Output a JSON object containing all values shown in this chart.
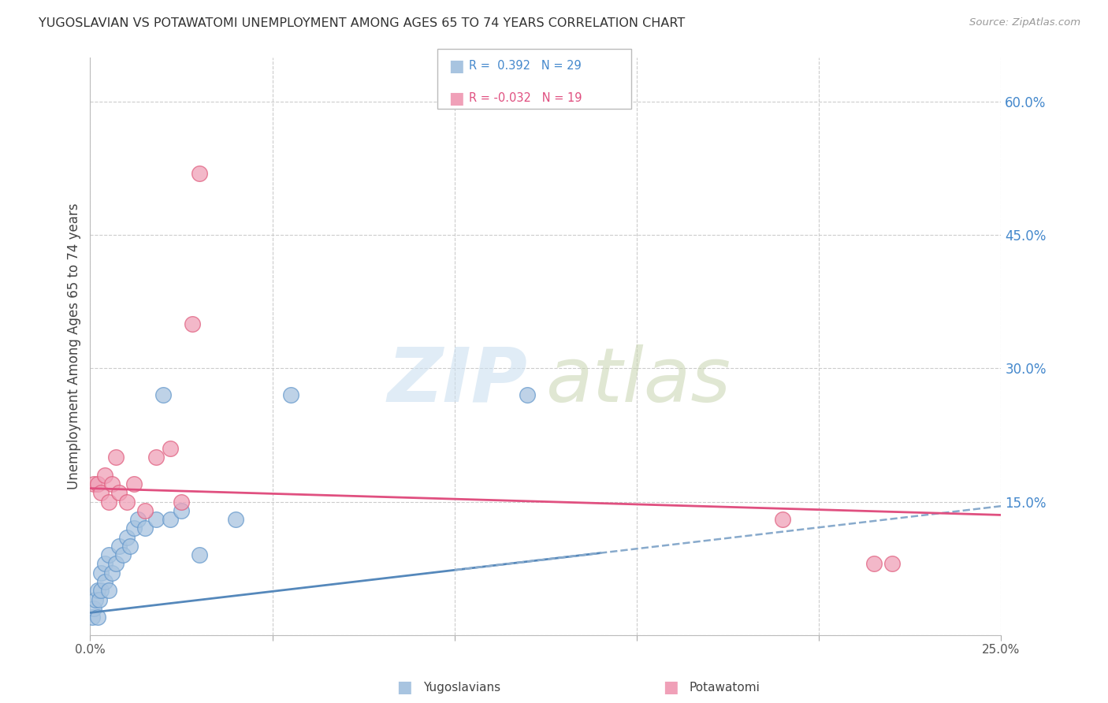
{
  "title": "YUGOSLAVIAN VS POTAWATOMI UNEMPLOYMENT AMONG AGES 65 TO 74 YEARS CORRELATION CHART",
  "source": "Source: ZipAtlas.com",
  "ylabel": "Unemployment Among Ages 65 to 74 years",
  "xlim": [
    0.0,
    0.25
  ],
  "ylim": [
    0.0,
    0.65
  ],
  "x_ticks": [
    0.0,
    0.05,
    0.1,
    0.15,
    0.2,
    0.25
  ],
  "y_ticks_right": [
    0.0,
    0.15,
    0.3,
    0.45,
    0.6
  ],
  "y_tick_labels_right": [
    "",
    "15.0%",
    "30.0%",
    "45.0%",
    "60.0%"
  ],
  "legend_blue_r": "0.392",
  "legend_blue_n": "29",
  "legend_pink_r": "-0.032",
  "legend_pink_n": "19",
  "color_blue": "#a8c4e0",
  "color_blue_dark": "#6699cc",
  "color_blue_line": "#5588bb",
  "color_blue_dashed": "#88aacc",
  "color_pink": "#f0a0b8",
  "color_pink_dark": "#e06080",
  "color_pink_line": "#e05080",
  "color_axis_label": "#4488cc",
  "background": "#ffffff",
  "grid_color": "#cccccc",
  "yugoslav_line_x0": 0.0,
  "yugoslav_line_y0": 0.025,
  "yugoslav_line_x1": 0.25,
  "yugoslav_line_y1": 0.145,
  "potawatomi_line_x0": 0.0,
  "potawatomi_line_y0": 0.165,
  "potawatomi_line_x1": 0.25,
  "potawatomi_line_y1": 0.135,
  "yugoslav_points_x": [
    0.0005,
    0.001,
    0.0015,
    0.002,
    0.002,
    0.0025,
    0.003,
    0.003,
    0.004,
    0.004,
    0.005,
    0.005,
    0.006,
    0.007,
    0.008,
    0.009,
    0.01,
    0.011,
    0.012,
    0.013,
    0.015,
    0.018,
    0.02,
    0.022,
    0.025,
    0.03,
    0.04,
    0.055,
    0.12
  ],
  "yugoslav_points_y": [
    0.02,
    0.03,
    0.04,
    0.02,
    0.05,
    0.04,
    0.05,
    0.07,
    0.06,
    0.08,
    0.05,
    0.09,
    0.07,
    0.08,
    0.1,
    0.09,
    0.11,
    0.1,
    0.12,
    0.13,
    0.12,
    0.13,
    0.27,
    0.13,
    0.14,
    0.09,
    0.13,
    0.27,
    0.27
  ],
  "potawatomi_points_x": [
    0.001,
    0.002,
    0.003,
    0.004,
    0.005,
    0.006,
    0.007,
    0.008,
    0.01,
    0.012,
    0.015,
    0.018,
    0.022,
    0.025,
    0.028,
    0.03,
    0.19,
    0.215,
    0.22
  ],
  "potawatomi_points_y": [
    0.17,
    0.17,
    0.16,
    0.18,
    0.15,
    0.17,
    0.2,
    0.16,
    0.15,
    0.17,
    0.14,
    0.2,
    0.21,
    0.15,
    0.35,
    0.52,
    0.13,
    0.08,
    0.08
  ]
}
